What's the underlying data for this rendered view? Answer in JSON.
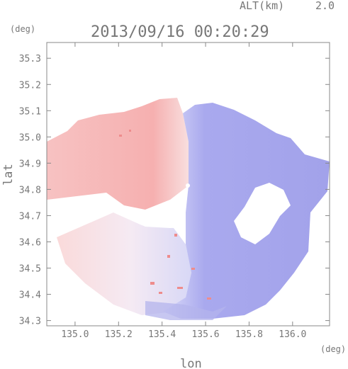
{
  "header": {
    "altitude_label": "ALT(km)",
    "altitude_value": "2.0",
    "timestamp": "2013/09/16 00:20:29"
  },
  "chart_data": {
    "type": "heatmap",
    "title": "2013/09/16 00:20:29",
    "xlabel": "lon",
    "ylabel": "lat",
    "x_unit": "(deg)",
    "y_unit": "(deg)",
    "xlim": [
      134.87,
      136.17
    ],
    "ylim": [
      34.28,
      35.36
    ],
    "x_ticks": [
      135.0,
      135.2,
      135.4,
      135.6,
      135.8,
      136.0
    ],
    "x_tick_labels": [
      "135.0",
      "135.2",
      "135.4",
      "135.6",
      "135.8",
      "136.0"
    ],
    "y_ticks": [
      34.3,
      34.4,
      34.5,
      34.6,
      34.7,
      34.8,
      34.9,
      35.0,
      35.1,
      35.2,
      35.3
    ],
    "y_tick_labels": [
      "34.3",
      "34.4",
      "34.5",
      "34.6",
      "34.7",
      "34.8",
      "34.9",
      "35.0",
      "35.1",
      "35.2",
      "35.3"
    ],
    "radar_center": {
      "lon": 135.52,
      "lat": 34.82
    },
    "colors": {
      "warm": "#f6b4b4",
      "cool": "#a8a8ee",
      "frame": "#888888"
    },
    "grid": false
  }
}
